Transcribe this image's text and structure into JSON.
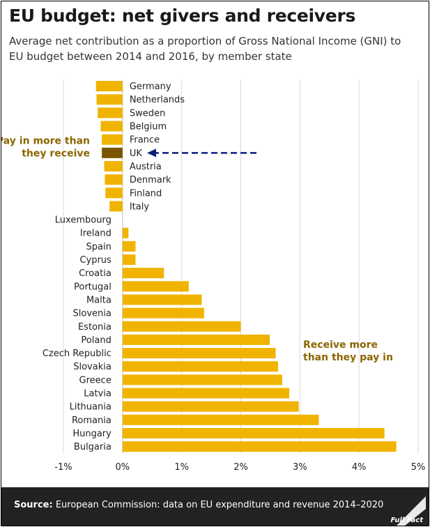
{
  "header": {
    "title": "EU budget: net givers and receivers",
    "subtitle": "Average net contribution as a proportion of Gross National Income (GNI) to EU budget between 2014 and 2016, by member state"
  },
  "footer": {
    "source_label": "Source:",
    "source_text": "European Commission: data on EU expenditure and revenue 2014–2020",
    "logo_text": "Full Fact"
  },
  "colors": {
    "bar": "#f0b400",
    "highlight": "#7a5500",
    "annotation_text": "#8a6500",
    "arrow": "#0b1f7a",
    "grid": "#d9d9d9"
  },
  "chart_data": {
    "type": "bar",
    "orientation": "horizontal",
    "title": "EU budget: net givers and receivers",
    "xlabel": "",
    "ylabel": "",
    "xlim": [
      -1,
      5
    ],
    "xticks": [
      -1,
      0,
      1,
      2,
      3,
      4,
      5
    ],
    "xtick_labels": [
      "-1%",
      "0%",
      "1%",
      "2%",
      "3%",
      "4%",
      "5%"
    ],
    "grid": true,
    "categories": [
      "Germany",
      "Netherlands",
      "Sweden",
      "Belgium",
      "France",
      "UK",
      "Austria",
      "Denmark",
      "Finland",
      "Italy",
      "Luxembourg",
      "Ireland",
      "Spain",
      "Cyprus",
      "Croatia",
      "Portugal",
      "Malta",
      "Slovenia",
      "Estonia",
      "Poland",
      "Czech Republic",
      "Slovakia",
      "Greece",
      "Latvia",
      "Lithuania",
      "Romania",
      "Hungary",
      "Bulgaria"
    ],
    "values": [
      -0.45,
      -0.44,
      -0.42,
      -0.37,
      -0.35,
      -0.35,
      -0.31,
      -0.3,
      -0.29,
      -0.22,
      0.0,
      0.1,
      0.22,
      0.22,
      0.7,
      1.12,
      1.34,
      1.38,
      2.0,
      2.49,
      2.59,
      2.63,
      2.7,
      2.82,
      2.98,
      3.32,
      4.43,
      4.63
    ],
    "highlight": "UK",
    "annotations": [
      {
        "text_lines": [
          "Pay in more than",
          "they receive"
        ]
      },
      {
        "text_lines": [
          "Receive more",
          "than they pay in"
        ]
      }
    ],
    "arrow_target": "UK"
  }
}
